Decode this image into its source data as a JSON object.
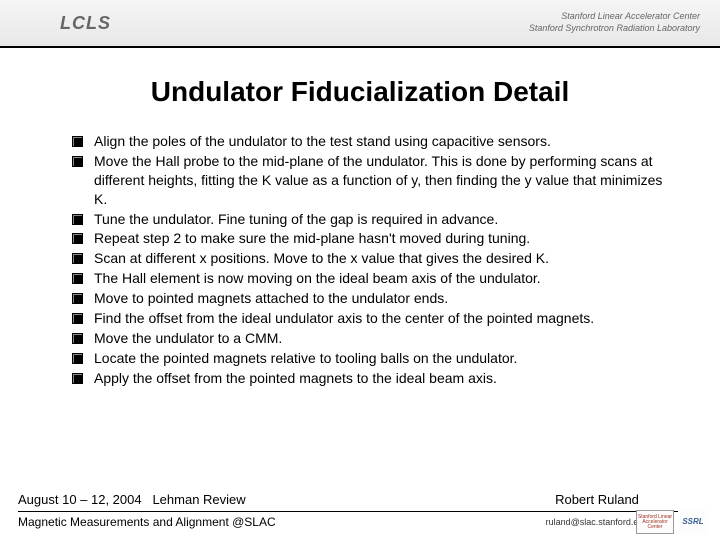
{
  "header": {
    "logo_left": "LCLS",
    "lab_line1": "Stanford Linear Accelerator Center",
    "lab_line2": "Stanford Synchrotron Radiation Laboratory"
  },
  "title": "Undulator Fiducialization Detail",
  "bullets": [
    "Align the poles of the undulator to the test stand using capacitive sensors.",
    "Move the Hall probe to the mid-plane of the undulator.  This is done by performing scans at different heights, fitting the K value as a function of y, then finding the y value that minimizes K.",
    "Tune the undulator. Fine tuning of the gap is required in advance.",
    "Repeat step 2 to make sure the mid-plane hasn't moved during tuning.",
    "Scan at different x positions.  Move to the x value that gives the desired K.",
    "The Hall element is now moving on the ideal beam axis of the undulator.",
    "Move to pointed magnets attached to the undulator ends.",
    "Find the offset from the ideal undulator axis to the center of the pointed magnets.",
    "Move the undulator to a CMM.",
    "Locate the pointed magnets relative to tooling balls on the undulator.",
    "Apply the offset from the pointed magnets to the ideal beam axis."
  ],
  "footer": {
    "date_text": "August 10 – 12, 2004",
    "event": "Lehman Review",
    "author": "Robert Ruland",
    "subtitle": "Magnetic Measurements and Alignment @SLAC",
    "email": "ruland@slac.stanford.edu",
    "logo1": "Stanford Linear Accelerator Center",
    "logo2": "SSRL"
  },
  "colors": {
    "text": "#000000",
    "divider": "#000000",
    "bg": "#ffffff"
  }
}
